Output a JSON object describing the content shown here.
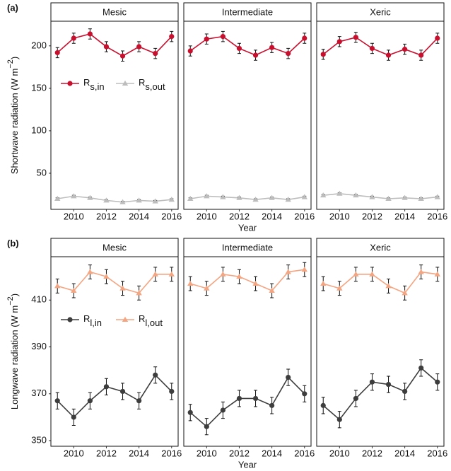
{
  "chart_data": [
    {
      "type": "line",
      "panel_label": "(a)",
      "xlabel": "Year",
      "ylabel": [
        "Shortwave  radiation (W m",
        "−2",
        ")"
      ],
      "x": [
        2009,
        2010,
        2011,
        2012,
        2013,
        2014,
        2015,
        2016
      ],
      "xlim": [
        2008.6,
        2016.4
      ],
      "xticks": [
        2010,
        2012,
        2014,
        2016
      ],
      "ylim": [
        7.5,
        229
      ],
      "yticks": [
        50,
        100,
        150,
        200
      ],
      "facets": [
        {
          "title": "Mesic",
          "series": [
            {
              "name": "R",
              "subscript": "s,in",
              "color": "#c8102e",
              "marker": "circle",
              "values": [
                192,
                209,
                214,
                199,
                188,
                199,
                191,
                211
              ],
              "errors": [
                6,
                6,
                6,
                6,
                6,
                6,
                6,
                6
              ]
            },
            {
              "name": "R",
              "subscript": "s,out",
              "color": "#bdbdbd",
              "marker": "triangle",
              "values": [
                20,
                23,
                21,
                18,
                16,
                18,
                17,
                19
              ],
              "errors": [
                1,
                1,
                1,
                1,
                1,
                1,
                1,
                1
              ]
            }
          ]
        },
        {
          "title": "Intermediate",
          "series": [
            {
              "name": "R",
              "subscript": "s,in",
              "color": "#c8102e",
              "marker": "circle",
              "values": [
                194,
                208,
                211,
                197,
                189,
                198,
                191,
                209
              ],
              "errors": [
                6,
                6,
                6,
                6,
                6,
                6,
                6,
                6
              ]
            },
            {
              "name": "R",
              "subscript": "s,out",
              "color": "#bdbdbd",
              "marker": "triangle",
              "values": [
                20,
                23,
                22,
                21,
                19,
                21,
                19,
                22
              ],
              "errors": [
                1,
                1,
                1,
                1,
                1,
                1,
                1,
                1
              ]
            }
          ]
        },
        {
          "title": "Xeric",
          "series": [
            {
              "name": "R",
              "subscript": "s,in",
              "color": "#c8102e",
              "marker": "circle",
              "values": [
                190,
                205,
                210,
                197,
                189,
                196,
                189,
                209
              ],
              "errors": [
                6,
                6,
                6,
                6,
                6,
                6,
                6,
                6
              ]
            },
            {
              "name": "R",
              "subscript": "s,out",
              "color": "#bdbdbd",
              "marker": "triangle",
              "values": [
                24,
                26,
                24,
                22,
                20,
                21,
                20,
                22
              ],
              "errors": [
                1,
                1,
                1,
                1,
                1,
                1,
                1,
                1
              ]
            }
          ]
        }
      ]
    },
    {
      "type": "line",
      "panel_label": "(b)",
      "xlabel": "Year",
      "ylabel": [
        "Longwave radiation (W m",
        "−2",
        ")"
      ],
      "x": [
        2009,
        2010,
        2011,
        2012,
        2013,
        2014,
        2015,
        2016
      ],
      "xlim": [
        2008.6,
        2016.4
      ],
      "xticks": [
        2010,
        2012,
        2014,
        2016
      ],
      "ylim": [
        347.6,
        428.5
      ],
      "yticks": [
        350,
        370,
        390,
        410
      ],
      "facets": [
        {
          "title": "Mesic",
          "series": [
            {
              "name": "R",
              "subscript": "l,in",
              "color": "#3d3d3d",
              "marker": "circle",
              "values": [
                367,
                360,
                367,
                373,
                371,
                367,
                378,
                371
              ],
              "errors": [
                3.5,
                3.5,
                3.5,
                3.5,
                3.5,
                3.5,
                3.5,
                3.5
              ]
            },
            {
              "name": "R",
              "subscript": "l,out",
              "color": "#f4a582",
              "marker": "triangle",
              "values": [
                416,
                414,
                422,
                420,
                415,
                413,
                421,
                421
              ],
              "errors": [
                3,
                3,
                3,
                3,
                3,
                3,
                3,
                3
              ]
            }
          ]
        },
        {
          "title": "Intermediate",
          "series": [
            {
              "name": "R",
              "subscript": "l,in",
              "color": "#3d3d3d",
              "marker": "circle",
              "values": [
                362,
                356,
                363,
                368,
                368,
                365,
                377,
                370
              ],
              "errors": [
                3.5,
                3.5,
                3.5,
                3.5,
                3.5,
                3.5,
                3.5,
                3.5
              ]
            },
            {
              "name": "R",
              "subscript": "l,out",
              "color": "#f4a582",
              "marker": "triangle",
              "values": [
                417,
                415,
                421,
                420,
                417,
                414,
                422,
                423
              ],
              "errors": [
                3,
                3,
                3,
                3,
                3,
                3,
                3,
                3
              ]
            }
          ]
        },
        {
          "title": "Xeric",
          "series": [
            {
              "name": "R",
              "subscript": "l,in",
              "color": "#3d3d3d",
              "marker": "circle",
              "values": [
                365,
                359,
                368,
                375,
                374,
                371,
                381,
                375
              ],
              "errors": [
                3.5,
                3.5,
                3.5,
                3.5,
                3.5,
                3.5,
                3.5,
                3.5
              ]
            },
            {
              "name": "R",
              "subscript": "l,out",
              "color": "#f4a582",
              "marker": "triangle",
              "values": [
                417,
                415,
                421,
                421,
                416,
                413,
                422,
                421
              ],
              "errors": [
                3,
                3,
                3,
                3,
                3,
                3,
                3,
                3
              ]
            }
          ]
        }
      ]
    }
  ]
}
